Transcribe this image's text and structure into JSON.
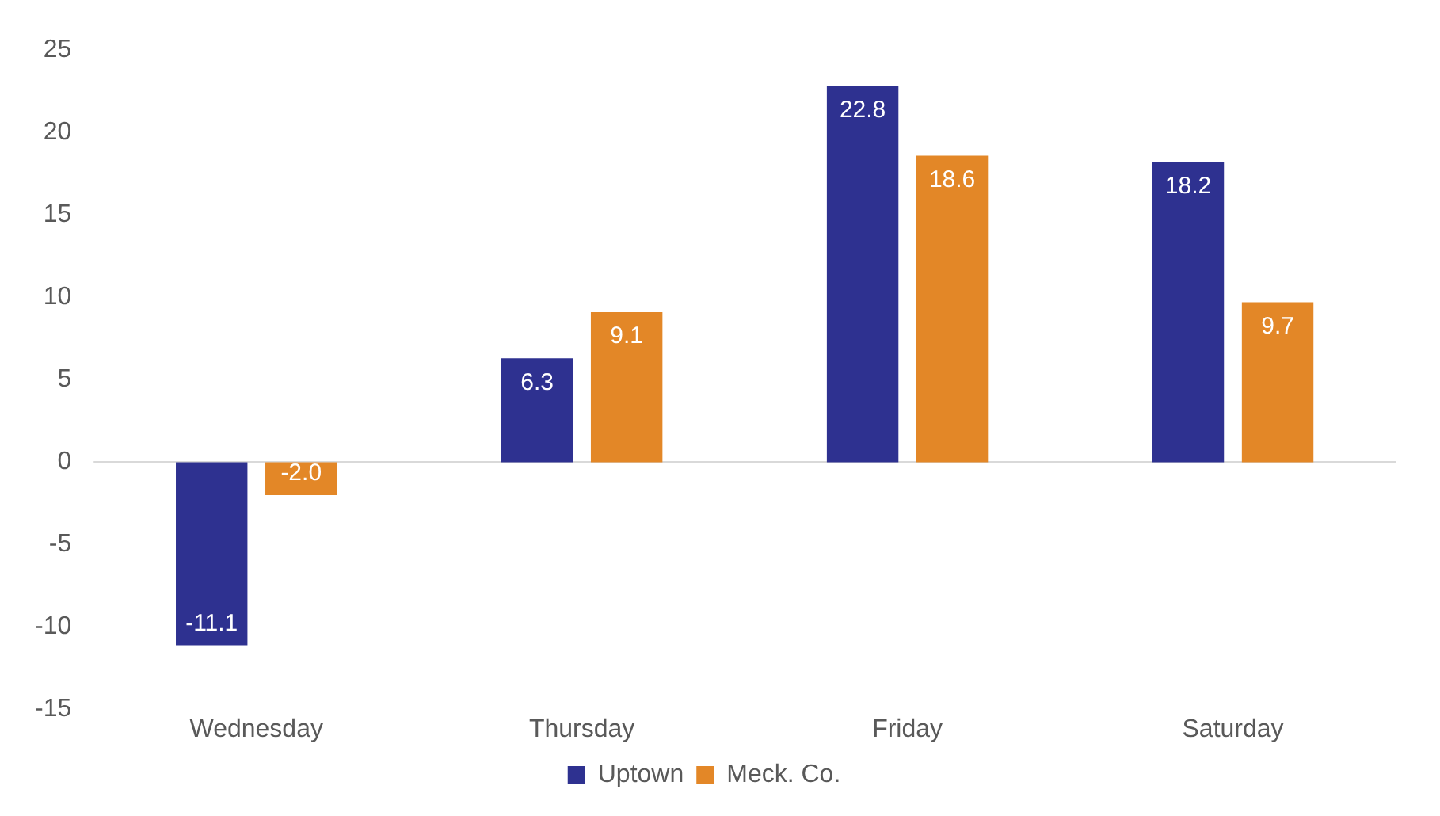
{
  "chart_data": {
    "type": "bar",
    "categories": [
      "Wednesday",
      "Thursday",
      "Friday",
      "Saturday"
    ],
    "series": [
      {
        "name": "Uptown",
        "color": "#2e3190",
        "values": [
          -11.1,
          6.3,
          22.8,
          18.2
        ],
        "value_labels": [
          "-11.1",
          "6.3",
          "22.8",
          "18.2"
        ]
      },
      {
        "name": "Meck. Co.",
        "color": "#e38727",
        "values": [
          -2.0,
          9.1,
          18.6,
          9.7
        ],
        "value_labels": [
          "-2.0",
          "9.1",
          "18.6",
          "9.7"
        ]
      }
    ],
    "ylim": [
      -15,
      25
    ],
    "yticks": [
      -15,
      -10,
      -5,
      0,
      5,
      10,
      15,
      20,
      25
    ],
    "grid": false,
    "ref_lines": [
      {
        "axis": "y",
        "value": 0,
        "color": "#d9d9d9"
      }
    ],
    "legend": "bottom"
  }
}
